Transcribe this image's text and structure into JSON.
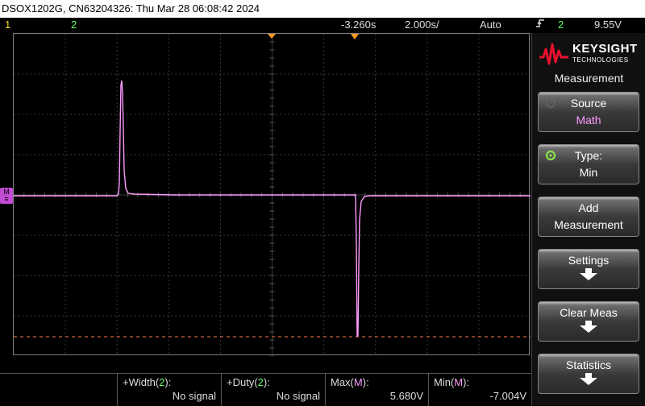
{
  "title_bar": {
    "text": "DSOX1202G, CN63204326: Thu Mar 28 06:08:42 2024"
  },
  "status": {
    "ch1_label": "1",
    "ch2_label": "2",
    "horizontal_delay": "-3.260s",
    "timebase": "2.000s/",
    "trigger_mode": "Auto",
    "trigger_source_icon": "trigger-edge-icon",
    "trigger_channel": "2",
    "trigger_level": "9.55V"
  },
  "sidebar": {
    "brand_name": "KEYSIGHT",
    "brand_sub": "TECHNOLOGIES",
    "menu_title": "Measurement",
    "buttons": [
      {
        "line1": "Source",
        "line2": "Math"
      },
      {
        "line1": "Type:",
        "line2": "Min"
      },
      {
        "line1": "Add",
        "line2": "Measurement"
      },
      {
        "line1": "Settings"
      },
      {
        "line1": "Clear Meas"
      },
      {
        "line1": "Statistics"
      }
    ]
  },
  "measurements": [
    {
      "label_prefix": "+Width(",
      "channel": "2",
      "label_suffix": "):",
      "value": "No signal"
    },
    {
      "label_prefix": "+Duty(",
      "channel": "2",
      "label_suffix": "):",
      "value": "No signal"
    },
    {
      "label_prefix": "Max(",
      "channel": "M",
      "label_suffix": "):",
      "value": "5.680V"
    },
    {
      "label_prefix": "Min(",
      "channel": "M",
      "label_suffix": "):",
      "value": "-7.004V"
    }
  ],
  "math_marker": {
    "label": "M"
  },
  "colors": {
    "ch1": "#f0e020",
    "ch2": "#60ff60",
    "math_trace": "#ff9bff",
    "trigger_marker": "#ff9a20",
    "cursor_line": "#ff7a50"
  }
}
